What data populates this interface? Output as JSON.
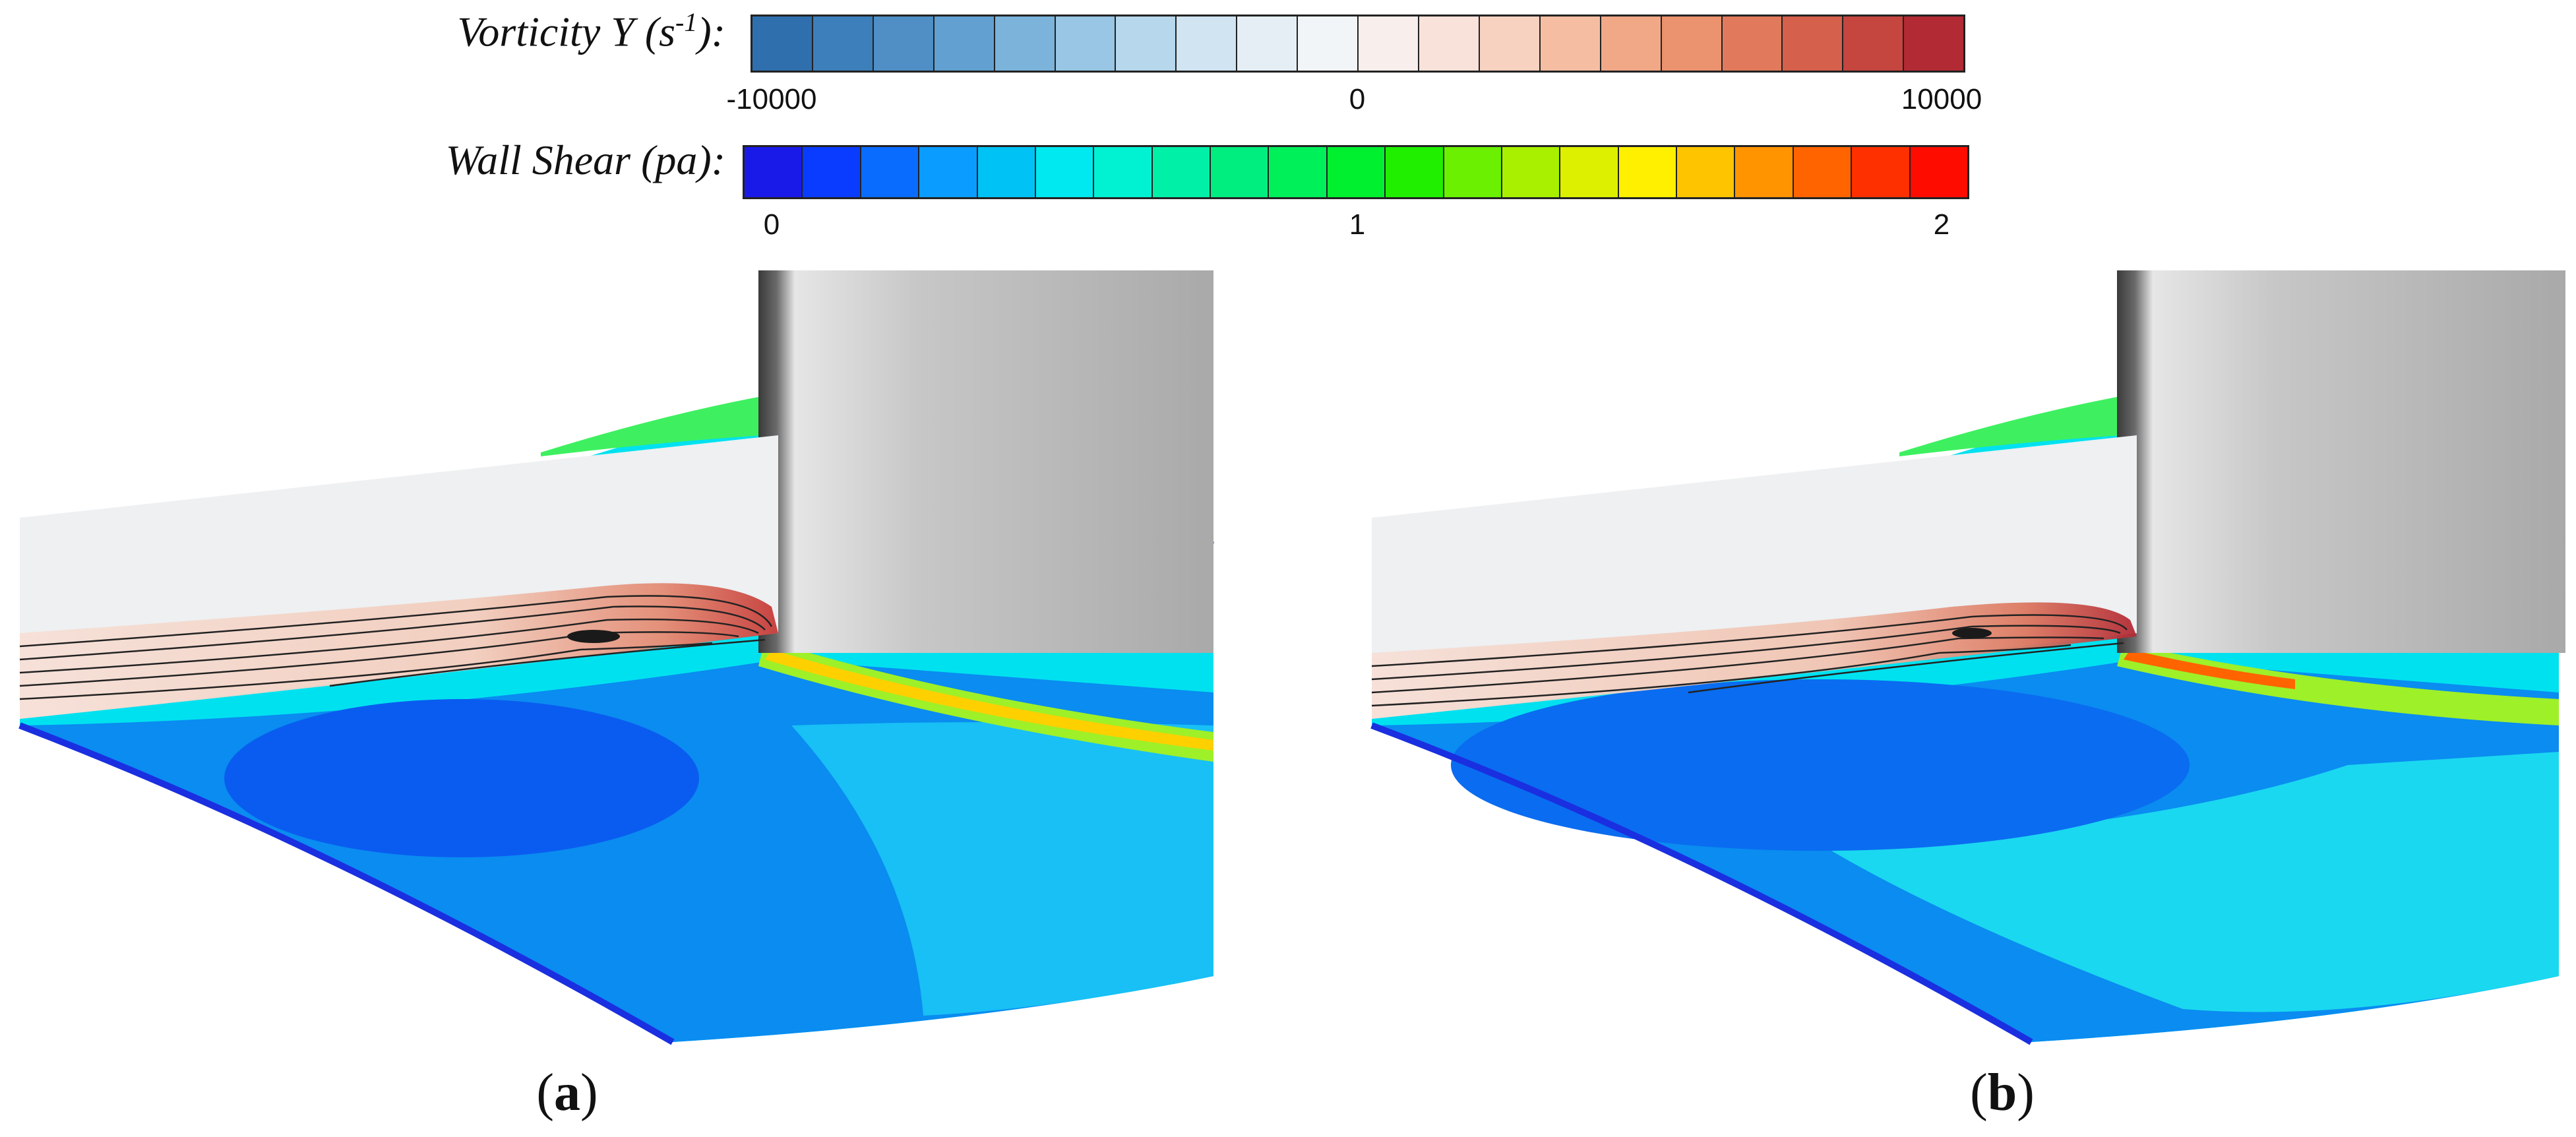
{
  "legend": {
    "vorticity": {
      "label_main": "Vorticity Y",
      "label_unit_open": "(s",
      "label_unit_sup": "-1",
      "label_unit_close": "):",
      "ticks": [
        "-10000",
        "0",
        "10000"
      ],
      "colors": [
        "#2f6fad",
        "#3d7fba",
        "#4f8fc6",
        "#62a0d1",
        "#7bb3db",
        "#98c6e4",
        "#b6d7ec",
        "#d0e4f1",
        "#e5eef5",
        "#f2f5f7",
        "#f8eeeb",
        "#f9e2d9",
        "#f8d2c0",
        "#f5bea3",
        "#f1a887",
        "#eb926f",
        "#e17a5c",
        "#d5604c",
        "#c5453f",
        "#b22a34"
      ]
    },
    "wall_shear": {
      "label_main": "Wall Shear",
      "label_unit": "(pa):",
      "ticks": [
        "0",
        "1",
        "2"
      ],
      "colors": [
        "#1a1ae8",
        "#0a3cff",
        "#0a6cff",
        "#0a9cff",
        "#00c2f5",
        "#00e8f0",
        "#00f2d2",
        "#00f0a8",
        "#00ee80",
        "#00f05a",
        "#00f030",
        "#20f000",
        "#6af000",
        "#a8f000",
        "#dcf000",
        "#fff000",
        "#ffc400",
        "#ff9400",
        "#ff6400",
        "#ff3000",
        "#ff0c00"
      ]
    }
  },
  "panels": [
    {
      "caption_open": "(",
      "caption_letter": "a",
      "caption_close": ")"
    },
    {
      "caption_open": "(",
      "caption_letter": "b",
      "caption_close": ")"
    }
  ]
}
